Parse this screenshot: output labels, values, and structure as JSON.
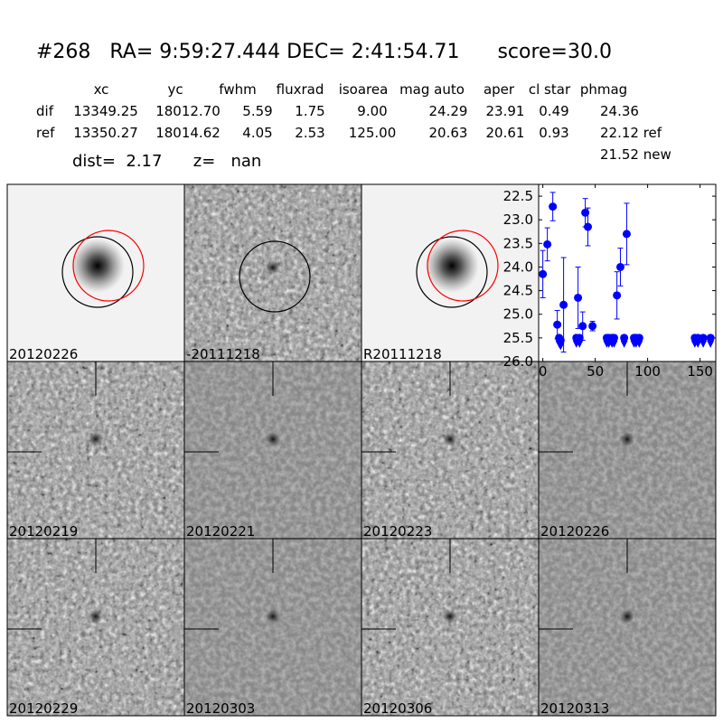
{
  "header": {
    "title": "#268   RA= 9:59:27.444 DEC= 2:41:54.71      score=30.0",
    "dist": "dist=  2.17      z=   nan"
  },
  "table": {
    "columns": [
      "xc",
      "yc",
      "fwhm",
      "fluxrad",
      "isoarea",
      "mag auto",
      "aper",
      "cl star",
      "phmag"
    ],
    "rows": [
      [
        "dif",
        "13349.25",
        "18012.70",
        "5.59",
        "1.75",
        "9.00",
        "24.29",
        "23.91",
        "0.49",
        "24.36"
      ],
      [
        "ref",
        "13350.27",
        "18014.62",
        "4.05",
        "2.53",
        "125.00",
        "20.63",
        "20.61",
        "0.93",
        "22.12 ref"
      ]
    ],
    "extra": "21.52 new"
  },
  "panels": [
    {
      "label": "20120226"
    },
    {
      "label": "-20111218"
    },
    {
      "label": "R20111218"
    },
    {
      "label": "20120219"
    },
    {
      "label": "20120221"
    },
    {
      "label": "20120223"
    },
    {
      "label": "20120226",
      "color": "#ff0000"
    },
    {
      "label": "20120229"
    },
    {
      "label": "20120303"
    },
    {
      "label": "20120306"
    },
    {
      "label": "20120313"
    }
  ],
  "chart_data": {
    "type": "scatter",
    "color": "#0000ff",
    "xlim": [
      -4,
      165
    ],
    "xticks": [
      0,
      50,
      100,
      150
    ],
    "ylim": [
      26.0,
      22.25
    ],
    "yticks": [
      22.5,
      {
        "value": 23,
        "label": "23.0"
      },
      23.5,
      {
        "value": 24,
        "label": "24.0"
      },
      24.5,
      {
        "value": 25,
        "label": "25.0"
      },
      25.5,
      {
        "value": 26,
        "label": "26.0"
      }
    ],
    "series": [
      {
        "x": [
          0,
          4.3,
          9.5,
          13.8,
          19.8,
          33.6,
          38,
          40.5,
          43,
          47.4,
          70.7,
          74,
          80
        ],
        "values": [
          24.15,
          23.52,
          22.72,
          25.22,
          24.8,
          24.65,
          25.25,
          22.85,
          23.15,
          25.25,
          24.6,
          24.0,
          23.3
        ],
        "errors": [
          0.5,
          0.35,
          0.3,
          0.3,
          1.0,
          0.65,
          0.3,
          0.3,
          0.4,
          0.1,
          0.5,
          0.4,
          0.65
        ]
      },
      {
        "x": [
          15.5,
          17,
          32,
          35,
          61,
          63,
          66,
          68,
          77.6,
          87,
          89,
          92,
          145,
          148,
          153,
          160
        ],
        "values": [
          25.5,
          25.55,
          25.5,
          25.5,
          25.5,
          25.5,
          25.5,
          25.5,
          25.5,
          25.5,
          25.5,
          25.5,
          25.5,
          25.5,
          25.5,
          25.5
        ]
      }
    ]
  }
}
